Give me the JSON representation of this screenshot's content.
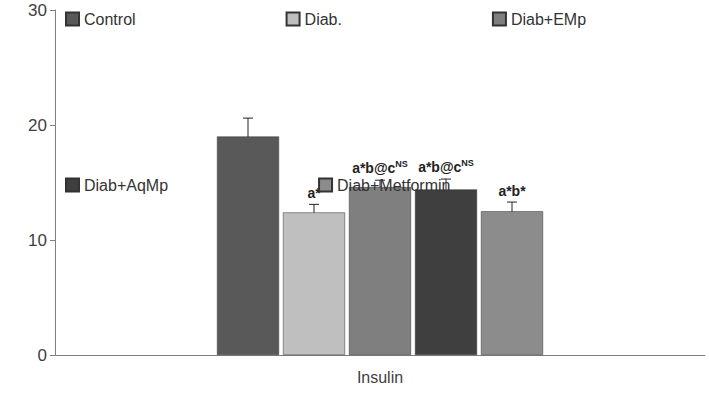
{
  "chart_data": {
    "type": "bar",
    "categories": [
      "Insulin"
    ],
    "series": [
      {
        "name": "Control",
        "color": "#595959",
        "values": [
          19.0
        ],
        "errors": [
          1.6
        ]
      },
      {
        "name": "Diab.",
        "color": "#bfbfbf",
        "values": [
          12.4
        ],
        "errors": [
          0.7
        ],
        "annotation": [
          "a*"
        ]
      },
      {
        "name": "Diab+EMp",
        "color": "#7f7f7f",
        "values": [
          14.6
        ],
        "errors": [
          0.6
        ],
        "annotation": [
          "a*b@c",
          "NS"
        ]
      },
      {
        "name": "Diab+AqMp",
        "color": "#3f3f3f",
        "values": [
          14.4
        ],
        "errors": [
          0.9
        ],
        "annotation": [
          "a*b@c",
          "NS"
        ]
      },
      {
        "name": "Diab+Metformin",
        "color": "#8c8c8c",
        "values": [
          12.5
        ],
        "errors": [
          0.8
        ],
        "annotation": [
          "a*b*"
        ]
      }
    ],
    "ylim": [
      0,
      30
    ],
    "yticks": [
      0,
      10,
      20,
      30
    ],
    "grid": false,
    "legend": "top"
  }
}
